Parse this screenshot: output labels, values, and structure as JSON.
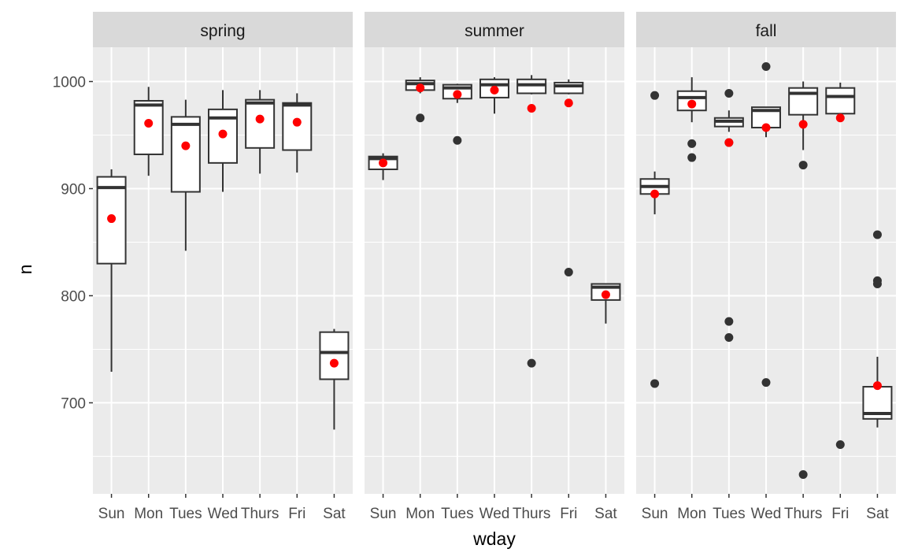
{
  "chart_data": {
    "type": "box",
    "xlabel": "wday",
    "ylabel": "n",
    "ylim": [
      615,
      1032
    ],
    "y_ticks": [
      700,
      800,
      900,
      1000
    ],
    "categories": [
      "Sun",
      "Mon",
      "Tues",
      "Wed",
      "Thurs",
      "Fri",
      "Sat"
    ],
    "colors": {
      "panel_bg": "#ebebeb",
      "strip_bg": "#d9d9d9",
      "grid": "#ffffff",
      "box_line": "#333333",
      "box_fill": "#ffffff",
      "outlier": "#333333",
      "mean_point": "#ff0000"
    },
    "facets": [
      {
        "label": "spring",
        "boxes": [
          {
            "x": "Sun",
            "whisker_low": 729,
            "q1": 830,
            "median": 901,
            "q3": 911,
            "whisker_high": 918,
            "mean": 872,
            "outliers": []
          },
          {
            "x": "Mon",
            "whisker_low": 912,
            "q1": 932,
            "median": 978,
            "q3": 982,
            "whisker_high": 995,
            "mean": 961,
            "outliers": []
          },
          {
            "x": "Tues",
            "whisker_low": 842,
            "q1": 897,
            "median": 960,
            "q3": 967,
            "whisker_high": 983,
            "mean": 940,
            "outliers": []
          },
          {
            "x": "Wed",
            "whisker_low": 897,
            "q1": 924,
            "median": 966,
            "q3": 974,
            "whisker_high": 992,
            "mean": 951,
            "outliers": []
          },
          {
            "x": "Thurs",
            "whisker_low": 914,
            "q1": 938,
            "median": 980,
            "q3": 983,
            "whisker_high": 992,
            "mean": 965,
            "outliers": []
          },
          {
            "x": "Fri",
            "whisker_low": 915,
            "q1": 936,
            "median": 978,
            "q3": 980,
            "whisker_high": 989,
            "mean": 962,
            "outliers": []
          },
          {
            "x": "Sat",
            "whisker_low": 675,
            "q1": 722,
            "median": 747,
            "q3": 766,
            "whisker_high": 769,
            "mean": 737,
            "outliers": []
          }
        ]
      },
      {
        "label": "summer",
        "boxes": [
          {
            "x": "Sun",
            "whisker_low": 908,
            "q1": 918,
            "median": 928,
            "q3": 930,
            "whisker_high": 933,
            "mean": 924,
            "outliers": []
          },
          {
            "x": "Mon",
            "whisker_low": 989,
            "q1": 992,
            "median": 998,
            "q3": 1001,
            "whisker_high": 1004,
            "mean": 994,
            "outliers": [
              966
            ]
          },
          {
            "x": "Tues",
            "whisker_low": 980,
            "q1": 984,
            "median": 994,
            "q3": 997,
            "whisker_high": 998,
            "mean": 988,
            "outliers": [
              945
            ]
          },
          {
            "x": "Wed",
            "whisker_low": 970,
            "q1": 985,
            "median": 997,
            "q3": 1002,
            "whisker_high": 1004,
            "mean": 992,
            "outliers": []
          },
          {
            "x": "Thurs",
            "whisker_low": 988,
            "q1": 989,
            "median": 997,
            "q3": 1002,
            "whisker_high": 1006,
            "mean": 975,
            "outliers": [
              737
            ]
          },
          {
            "x": "Fri",
            "whisker_low": 988,
            "q1": 989,
            "median": 996,
            "q3": 999,
            "whisker_high": 1002,
            "mean": 980,
            "outliers": [
              822
            ]
          },
          {
            "x": "Sat",
            "whisker_low": 774,
            "q1": 796,
            "median": 808,
            "q3": 811,
            "whisker_high": 811,
            "mean": 801,
            "outliers": []
          }
        ]
      },
      {
        "label": "fall",
        "boxes": [
          {
            "x": "Sun",
            "whisker_low": 876,
            "q1": 895,
            "median": 902,
            "q3": 909,
            "whisker_high": 916,
            "mean": 895,
            "outliers": [
              987,
              718
            ]
          },
          {
            "x": "Mon",
            "whisker_low": 962,
            "q1": 973,
            "median": 985,
            "q3": 991,
            "whisker_high": 1004,
            "mean": 979,
            "outliers": [
              942,
              929
            ]
          },
          {
            "x": "Tues",
            "whisker_low": 953,
            "q1": 958,
            "median": 963,
            "q3": 966,
            "whisker_high": 973,
            "mean": 943,
            "outliers": [
              989,
              943,
              776,
              761
            ]
          },
          {
            "x": "Wed",
            "whisker_low": 948,
            "q1": 957,
            "median": 973,
            "q3": 976,
            "whisker_high": 976,
            "mean": 957,
            "outliers": [
              1014,
              719
            ]
          },
          {
            "x": "Thurs",
            "whisker_low": 936,
            "q1": 969,
            "median": 989,
            "q3": 994,
            "whisker_high": 1000,
            "mean": 960,
            "outliers": [
              922,
              633
            ]
          },
          {
            "x": "Fri",
            "whisker_low": 968,
            "q1": 970,
            "median": 986,
            "q3": 994,
            "whisker_high": 999,
            "mean": 966,
            "outliers": [
              661
            ]
          },
          {
            "x": "Sat",
            "whisker_low": 677,
            "q1": 685,
            "median": 690,
            "q3": 715,
            "whisker_high": 743,
            "mean": 716,
            "outliers": [
              857,
              814,
              811
            ]
          }
        ]
      }
    ]
  }
}
